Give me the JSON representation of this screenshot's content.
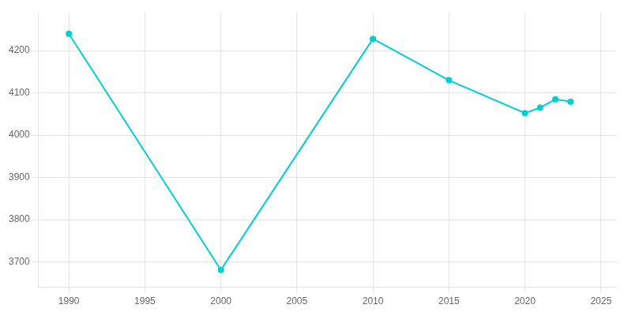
{
  "chart_data": {
    "type": "line",
    "x": [
      1990,
      2000,
      2010,
      2015,
      2020,
      2021,
      2022,
      2023
    ],
    "values": [
      4240,
      3681,
      4228,
      4130,
      4052,
      4065,
      4085,
      4079
    ],
    "color": "#00CED1",
    "marker": "circle",
    "xlim": [
      1988,
      2026
    ],
    "xticks": [
      1990,
      1995,
      2000,
      2005,
      2010,
      2015,
      2020,
      2025
    ],
    "ylim": [
      3640,
      4290
    ],
    "yticks": [
      3700,
      3800,
      3900,
      4000,
      4100,
      4200
    ],
    "grid": true
  }
}
